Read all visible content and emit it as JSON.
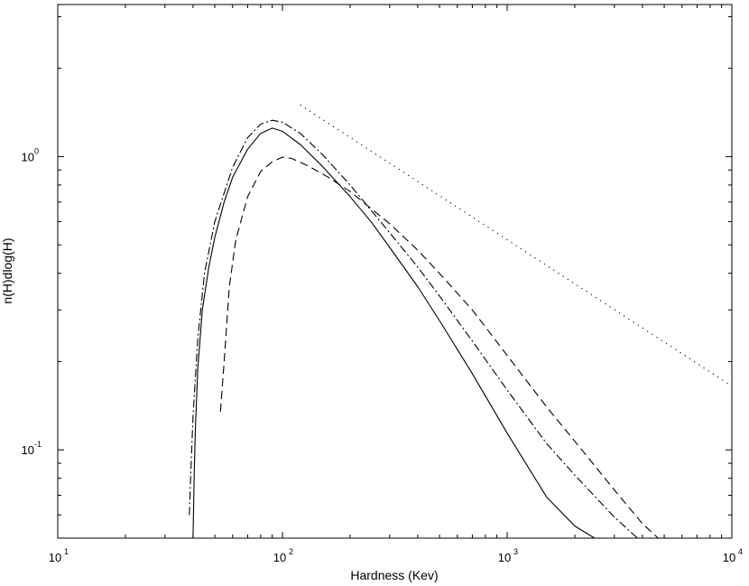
{
  "chart_data": {
    "type": "line",
    "title": "",
    "xlabel": "Hardness (Kev)",
    "ylabel": "n(H)dlog(H)",
    "x_scale": "log",
    "y_scale": "log",
    "xlim": [
      10,
      10000
    ],
    "ylim": [
      0.05,
      3.3
    ],
    "grid": false,
    "legend": "none",
    "x_ticks": [
      {
        "value": 10,
        "base": "10",
        "exp": "1"
      },
      {
        "value": 100,
        "base": "10",
        "exp": "2"
      },
      {
        "value": 1000,
        "base": "10",
        "exp": "3"
      },
      {
        "value": 10000,
        "base": "10",
        "exp": "4"
      }
    ],
    "y_ticks": [
      {
        "value": 0.1,
        "base": "10",
        "exp": "-1"
      },
      {
        "value": 1,
        "base": "10",
        "exp": "0"
      }
    ],
    "series": [
      {
        "style": "solid",
        "color": "#000000",
        "x": [
          40,
          40.5,
          41,
          42,
          44,
          47,
          50,
          55,
          60,
          70,
          80,
          90,
          100,
          120,
          150,
          200,
          250,
          300,
          400,
          500,
          700,
          1000,
          1500,
          2000,
          2450
        ],
        "y": [
          0.05,
          0.085,
          0.12,
          0.19,
          0.3,
          0.42,
          0.53,
          0.7,
          0.85,
          1.06,
          1.2,
          1.25,
          1.22,
          1.1,
          0.93,
          0.73,
          0.595,
          0.49,
          0.36,
          0.276,
          0.182,
          0.114,
          0.069,
          0.055,
          0.05
        ]
      },
      {
        "style": "dash-dot",
        "color": "#000000",
        "x": [
          38.5,
          39,
          40,
          42,
          45,
          50,
          60,
          70,
          80,
          90,
          100,
          120,
          150,
          200,
          300,
          400,
          500,
          700,
          1000,
          1500,
          2000,
          3000,
          3800
        ],
        "y": [
          0.06,
          0.08,
          0.13,
          0.24,
          0.4,
          0.6,
          0.92,
          1.16,
          1.29,
          1.33,
          1.31,
          1.2,
          1.02,
          0.8,
          0.55,
          0.42,
          0.335,
          0.235,
          0.16,
          0.105,
          0.082,
          0.059,
          0.05
        ]
      },
      {
        "style": "dashed",
        "color": "#000000",
        "x": [
          53,
          55,
          58,
          62,
          70,
          80,
          90,
          100,
          110,
          130,
          160,
          200,
          300,
          400,
          500,
          700,
          1000,
          1500,
          2000,
          3000,
          4000,
          4700
        ],
        "y": [
          0.135,
          0.2,
          0.36,
          0.52,
          0.73,
          0.89,
          0.96,
          0.995,
          0.985,
          0.93,
          0.85,
          0.76,
          0.59,
          0.48,
          0.4,
          0.3,
          0.21,
          0.14,
          0.107,
          0.073,
          0.056,
          0.05
        ]
      },
      {
        "style": "dotted",
        "color": "#000000",
        "x": [
          120,
          10000
        ],
        "y": [
          1.5,
          0.165
        ]
      }
    ]
  }
}
